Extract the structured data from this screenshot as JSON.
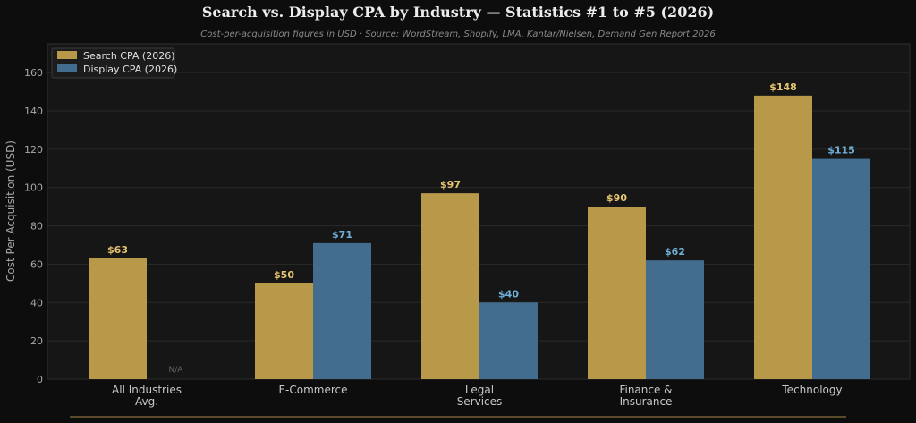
{
  "chart_data": {
    "type": "bar",
    "title": "Search vs. Display CPA by Industry — Statistics #1 to #5 (2026)",
    "subtitle": "Cost-per-acquisition figures in USD · Source: WordStream, Shopify, LMA, Kantar/Nielsen, Demand Gen Report 2026",
    "ylabel": "Cost Per Acquisition (USD)",
    "xlabel": "",
    "ylim": [
      0,
      175
    ],
    "yticks": [
      0,
      20,
      40,
      60,
      80,
      100,
      120,
      140,
      160
    ],
    "grid": true,
    "legend_position": "top-left",
    "categories": [
      [
        "All Industries",
        "Avg."
      ],
      [
        "E-Commerce"
      ],
      [
        "Legal",
        "Services"
      ],
      [
        "Finance &",
        "Insurance"
      ],
      [
        "Technology"
      ]
    ],
    "series": [
      {
        "name": "Search CPA (2026)",
        "color": "#b8994a",
        "label_color": "#e6c570",
        "values": [
          63,
          50,
          97,
          90,
          148
        ],
        "labels": [
          "$63",
          "$50",
          "$97",
          "$90",
          "$148"
        ]
      },
      {
        "name": "Display CPA (2026)",
        "color": "#436d8f",
        "label_color": "#6fb0d8",
        "values": [
          null,
          71,
          40,
          62,
          115
        ],
        "labels": [
          "N/A",
          "$71",
          "$40",
          "$62",
          "$115"
        ]
      }
    ],
    "colors": {
      "background": "#0d0d0d",
      "plot_background": "#161616",
      "grid": "#2a2a2a",
      "accent_line": "#5a4a2a"
    }
  }
}
